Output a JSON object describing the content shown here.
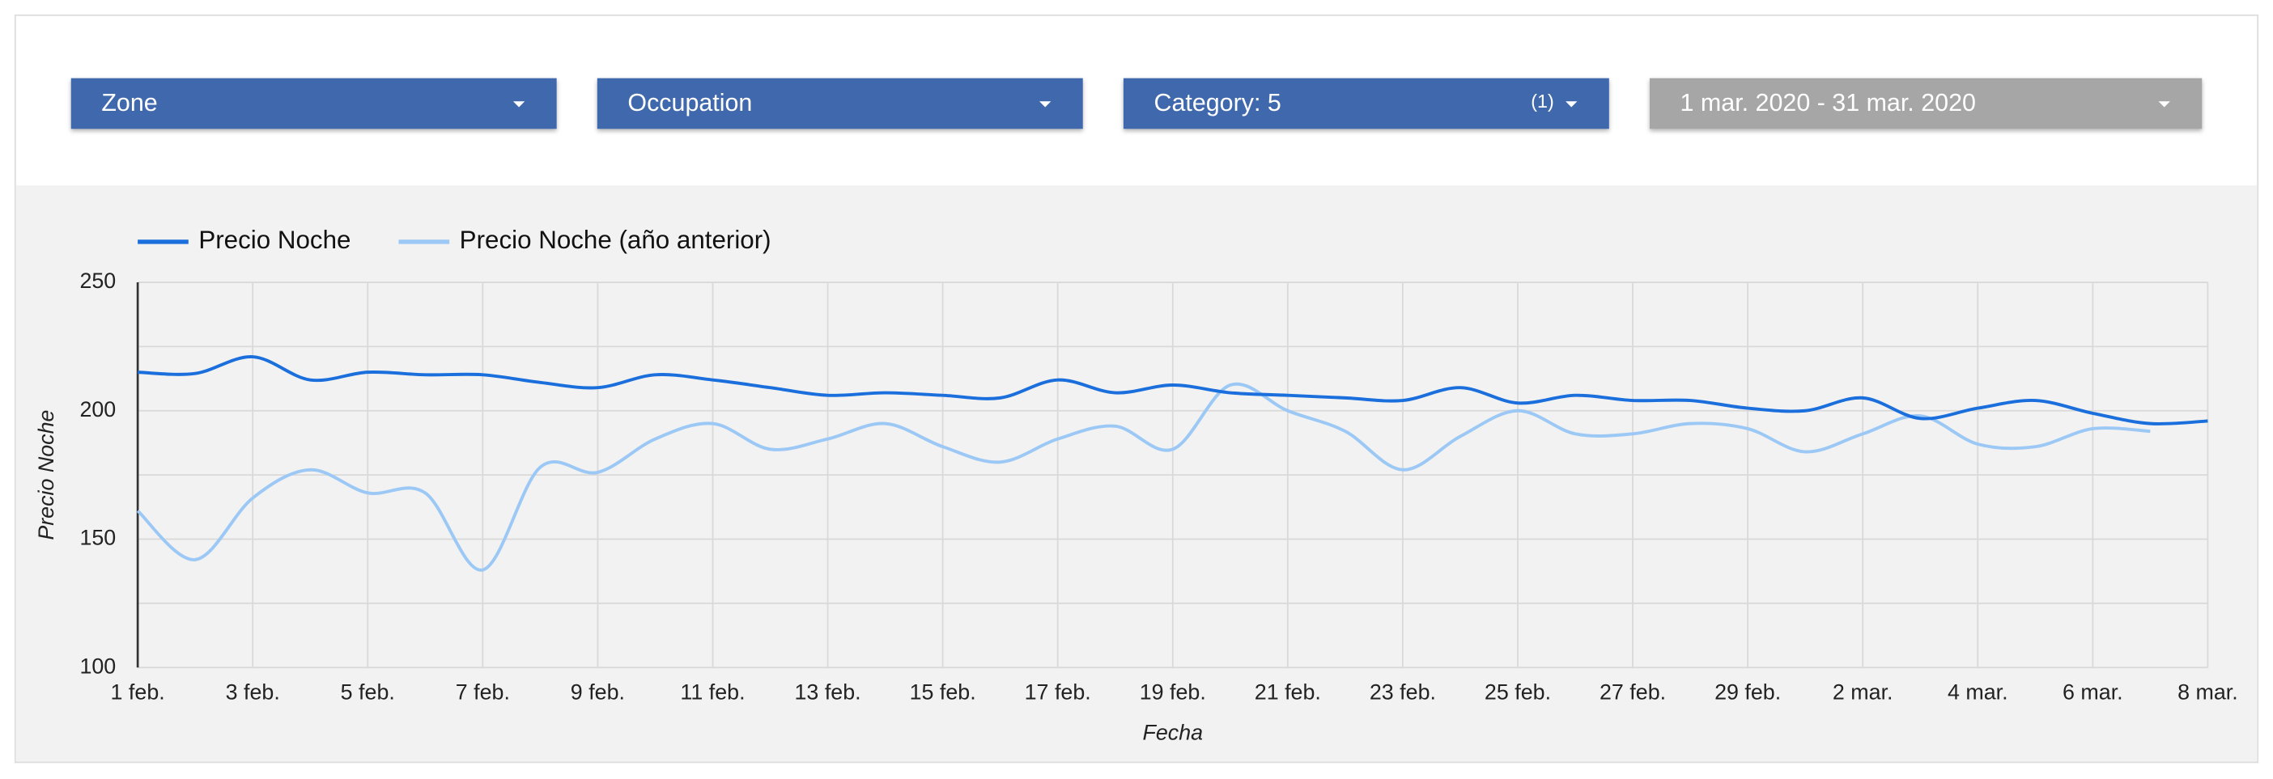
{
  "filters": [
    {
      "label": "Zone"
    },
    {
      "label": "Occupation"
    },
    {
      "label": "Category: 5",
      "badge": "(1)"
    },
    {
      "label": "1 mar. 2020 - 31 mar. 2020"
    }
  ],
  "chart_data": {
    "type": "line",
    "x_label": "Fecha",
    "y_label": "Precio Noche",
    "categories": [
      "1 feb.",
      null,
      "3 feb.",
      null,
      "5 feb.",
      null,
      "7 feb.",
      null,
      "9 feb.",
      null,
      "11 feb.",
      null,
      "13 feb.",
      null,
      "15 feb.",
      null,
      "17 feb.",
      null,
      "19 feb.",
      null,
      "21 feb.",
      null,
      "23 feb.",
      null,
      "25 feb.",
      null,
      "27 feb.",
      null,
      "29 feb.",
      null,
      "2 mar.",
      null,
      "4 mar.",
      null,
      "6 mar.",
      null,
      "8 mar."
    ],
    "series": [
      {
        "name": "Precio Noche",
        "color": "#1a6fdc",
        "values": [
          215,
          214.5,
          221,
          212,
          215,
          214,
          214,
          211,
          209,
          214,
          212,
          209,
          206,
          207,
          206,
          205,
          212,
          207,
          210,
          207,
          206,
          205,
          204,
          209,
          203,
          206,
          204,
          204,
          201,
          200,
          205,
          197,
          201,
          204,
          199,
          195,
          196
        ]
      },
      {
        "name": "Precio Noche (año anterior)",
        "color": "#9cc8f5",
        "values": [
          161,
          142,
          166,
          177,
          168,
          168,
          138,
          178,
          176,
          189,
          195,
          185,
          189,
          195,
          186,
          180,
          189,
          194,
          185,
          210,
          200,
          192,
          177,
          190,
          200,
          191,
          191,
          195,
          193,
          184,
          191,
          198,
          187,
          186,
          193,
          192,
          null
        ]
      }
    ],
    "ylim": [
      100,
      250
    ],
    "yticks": [
      100,
      150,
      200,
      250
    ],
    "y_minor_ticks": [
      125,
      175,
      225
    ],
    "grid": true,
    "legend": "top-left"
  }
}
